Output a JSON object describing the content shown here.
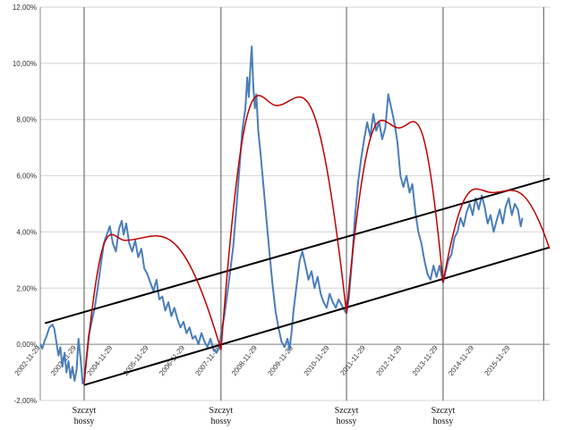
{
  "chart_data": {
    "type": "line",
    "title": "",
    "xlabel": "",
    "ylabel": "",
    "ylim": [
      -2,
      12
    ],
    "xlim": [
      "2002-11-29",
      "2017-01-01"
    ],
    "y_ticks": [
      "-2,00%",
      "0,00%",
      "2,00%",
      "4,00%",
      "6,00%",
      "8,00%",
      "10,00%",
      "12,00%"
    ],
    "x_ticks": [
      {
        "date": "2002-11-29",
        "label": "2002-11-29"
      },
      {
        "date": "2003-11-29",
        "label": "2003-11-29"
      },
      {
        "date": "2004-11-29",
        "label": "2004-11-29"
      },
      {
        "date": "2005-11-29",
        "label": "2005-11-29"
      },
      {
        "date": "2006-11-29",
        "label": "2006-11-29"
      },
      {
        "date": "2007-11-29",
        "label": "2007-11-29"
      },
      {
        "date": "2008-11-29",
        "label": "2008-11-29"
      },
      {
        "date": "2009-11-29",
        "label": "2009-11-29"
      },
      {
        "date": "2010-11-29",
        "label": "2010-11-29"
      },
      {
        "date": "2011-11-29",
        "label": "2011-11-29"
      },
      {
        "date": "2012-11-29",
        "label": "2012-11-29"
      },
      {
        "date": "2013-11-29",
        "label": "2013-11-29"
      },
      {
        "date": "2014-11-29",
        "label": "2014-11-29"
      },
      {
        "date": "2015-11-29",
        "label": "2015-11-29"
      }
    ],
    "vertical_lines": [
      "2004-02-15",
      "2007-11-29",
      "2011-05-20",
      "2014-01-20",
      "2016-11-01"
    ],
    "peak_labels": [
      {
        "date": "2004-02-15",
        "line1": "Szczyt",
        "line2": "hossy"
      },
      {
        "date": "2007-11-29",
        "line1": "Szczyt",
        "line2": "hossy"
      },
      {
        "date": "2011-05-20",
        "line1": "Szczyt",
        "line2": "hossy"
      },
      {
        "date": "2014-01-20",
        "line1": "Szczyt",
        "line2": "hossy"
      }
    ],
    "series": [
      {
        "color": "#4a7ebb",
        "points": [
          [
            "2002-11-29",
            0.0
          ],
          [
            "2002-12-20",
            -0.15
          ],
          [
            "2003-01-10",
            0.1
          ],
          [
            "2003-02-01",
            0.3
          ],
          [
            "2003-03-01",
            0.6
          ],
          [
            "2003-04-01",
            0.7
          ],
          [
            "2003-04-20",
            0.55
          ],
          [
            "2003-05-10",
            0.1
          ],
          [
            "2003-06-01",
            -0.4
          ],
          [
            "2003-06-20",
            -0.1
          ],
          [
            "2003-07-10",
            -0.8
          ],
          [
            "2003-08-01",
            -0.3
          ],
          [
            "2003-08-20",
            -1.0
          ],
          [
            "2003-09-10",
            -0.6
          ],
          [
            "2003-10-01",
            -1.2
          ],
          [
            "2003-10-20",
            -0.8
          ],
          [
            "2003-11-10",
            -1.3
          ],
          [
            "2003-12-01",
            -0.9
          ],
          [
            "2003-12-20",
            0.2
          ],
          [
            "2004-01-10",
            -0.5
          ],
          [
            "2004-02-01",
            -1.4
          ],
          [
            "2004-02-15",
            -1.3
          ],
          [
            "2004-03-10",
            -0.5
          ],
          [
            "2004-04-01",
            0.3
          ],
          [
            "2004-05-01",
            0.8
          ],
          [
            "2004-06-01",
            1.3
          ],
          [
            "2004-07-01",
            2.0
          ],
          [
            "2004-08-01",
            2.8
          ],
          [
            "2004-09-01",
            3.6
          ],
          [
            "2004-10-01",
            3.9
          ],
          [
            "2004-11-01",
            4.2
          ],
          [
            "2004-12-01",
            3.6
          ],
          [
            "2005-01-01",
            3.3
          ],
          [
            "2005-02-01",
            4.1
          ],
          [
            "2005-03-01",
            4.4
          ],
          [
            "2005-03-20",
            3.9
          ],
          [
            "2005-04-15",
            4.3
          ],
          [
            "2005-05-15",
            3.6
          ],
          [
            "2005-06-15",
            3.3
          ],
          [
            "2005-07-15",
            3.7
          ],
          [
            "2005-08-15",
            3.1
          ],
          [
            "2005-09-15",
            3.4
          ],
          [
            "2005-10-15",
            2.7
          ],
          [
            "2005-11-15",
            2.5
          ],
          [
            "2005-12-15",
            2.2
          ],
          [
            "2006-01-15",
            1.9
          ],
          [
            "2006-02-15",
            2.3
          ],
          [
            "2006-03-15",
            1.6
          ],
          [
            "2006-04-15",
            1.7
          ],
          [
            "2006-05-15",
            1.2
          ],
          [
            "2006-06-15",
            1.5
          ],
          [
            "2006-07-15",
            1.0
          ],
          [
            "2006-08-15",
            1.3
          ],
          [
            "2006-09-15",
            0.9
          ],
          [
            "2006-10-15",
            0.6
          ],
          [
            "2006-11-15",
            0.8
          ],
          [
            "2006-12-15",
            0.4
          ],
          [
            "2007-01-15",
            0.6
          ],
          [
            "2007-02-15",
            0.2
          ],
          [
            "2007-03-15",
            0.3
          ],
          [
            "2007-04-15",
            0.0
          ],
          [
            "2007-05-15",
            0.4
          ],
          [
            "2007-06-15",
            0.1
          ],
          [
            "2007-07-15",
            -0.1
          ],
          [
            "2007-08-15",
            0.2
          ],
          [
            "2007-09-15",
            -0.2
          ],
          [
            "2007-10-15",
            -0.3
          ],
          [
            "2007-11-15",
            0.0
          ],
          [
            "2007-12-01",
            0.4
          ],
          [
            "2008-01-01",
            1.0
          ],
          [
            "2008-02-01",
            1.8
          ],
          [
            "2008-03-01",
            2.6
          ],
          [
            "2008-04-01",
            3.5
          ],
          [
            "2008-05-01",
            4.8
          ],
          [
            "2008-06-01",
            6.2
          ],
          [
            "2008-07-01",
            7.6
          ],
          [
            "2008-08-01",
            8.4
          ],
          [
            "2008-08-20",
            9.5
          ],
          [
            "2008-09-05",
            8.8
          ],
          [
            "2008-09-20",
            9.8
          ],
          [
            "2008-10-05",
            10.6
          ],
          [
            "2008-10-20",
            9.2
          ],
          [
            "2008-11-05",
            8.4
          ],
          [
            "2008-11-20",
            8.9
          ],
          [
            "2008-12-10",
            7.6
          ],
          [
            "2009-01-01",
            6.8
          ],
          [
            "2009-02-01",
            5.6
          ],
          [
            "2009-03-01",
            4.5
          ],
          [
            "2009-04-01",
            3.3
          ],
          [
            "2009-05-01",
            2.2
          ],
          [
            "2009-06-01",
            1.2
          ],
          [
            "2009-07-01",
            0.6
          ],
          [
            "2009-08-01",
            0.1
          ],
          [
            "2009-09-01",
            -0.1
          ],
          [
            "2009-10-01",
            0.2
          ],
          [
            "2009-10-20",
            -0.2
          ],
          [
            "2009-11-10",
            0.4
          ],
          [
            "2009-12-01",
            1.2
          ],
          [
            "2010-01-01",
            2.1
          ],
          [
            "2010-02-01",
            3.0
          ],
          [
            "2010-03-01",
            3.3
          ],
          [
            "2010-04-01",
            2.8
          ],
          [
            "2010-05-01",
            2.3
          ],
          [
            "2010-06-01",
            2.6
          ],
          [
            "2010-07-01",
            2.0
          ],
          [
            "2010-08-01",
            2.4
          ],
          [
            "2010-09-01",
            1.8
          ],
          [
            "2010-10-01",
            1.5
          ],
          [
            "2010-11-01",
            1.3
          ],
          [
            "2010-12-01",
            1.8
          ],
          [
            "2011-01-01",
            1.5
          ],
          [
            "2011-02-01",
            1.3
          ],
          [
            "2011-03-01",
            1.6
          ],
          [
            "2011-04-01",
            1.4
          ],
          [
            "2011-05-01",
            1.2
          ],
          [
            "2011-05-20",
            1.1
          ],
          [
            "2011-06-15",
            1.7
          ],
          [
            "2011-07-15",
            3.0
          ],
          [
            "2011-08-15",
            4.6
          ],
          [
            "2011-09-15",
            5.8
          ],
          [
            "2011-10-15",
            6.6
          ],
          [
            "2011-11-15",
            7.3
          ],
          [
            "2011-12-15",
            7.9
          ],
          [
            "2012-01-15",
            7.4
          ],
          [
            "2012-02-15",
            8.2
          ],
          [
            "2012-03-15",
            7.6
          ],
          [
            "2012-04-15",
            7.9
          ],
          [
            "2012-05-15",
            7.3
          ],
          [
            "2012-06-15",
            7.7
          ],
          [
            "2012-07-15",
            8.9
          ],
          [
            "2012-08-15",
            8.4
          ],
          [
            "2012-09-15",
            7.9
          ],
          [
            "2012-10-15",
            7.2
          ],
          [
            "2012-11-15",
            6.0
          ],
          [
            "2012-12-15",
            5.6
          ],
          [
            "2013-01-15",
            6.0
          ],
          [
            "2013-02-15",
            5.4
          ],
          [
            "2013-03-15",
            5.7
          ],
          [
            "2013-04-15",
            4.7
          ],
          [
            "2013-05-15",
            4.0
          ],
          [
            "2013-06-15",
            3.6
          ],
          [
            "2013-07-15",
            3.0
          ],
          [
            "2013-08-15",
            2.5
          ],
          [
            "2013-09-15",
            2.3
          ],
          [
            "2013-10-15",
            2.8
          ],
          [
            "2013-11-15",
            2.4
          ],
          [
            "2013-12-15",
            2.8
          ],
          [
            "2014-01-20",
            2.2
          ],
          [
            "2014-02-15",
            2.6
          ],
          [
            "2014-03-15",
            3.0
          ],
          [
            "2014-04-15",
            3.2
          ],
          [
            "2014-05-15",
            3.8
          ],
          [
            "2014-06-15",
            4.0
          ],
          [
            "2014-07-15",
            4.5
          ],
          [
            "2014-08-15",
            4.2
          ],
          [
            "2014-09-15",
            4.7
          ],
          [
            "2014-10-15",
            5.0
          ],
          [
            "2014-11-15",
            4.6
          ],
          [
            "2014-12-15",
            5.2
          ],
          [
            "2015-01-15",
            4.8
          ],
          [
            "2015-02-15",
            5.3
          ],
          [
            "2015-03-15",
            4.9
          ],
          [
            "2015-04-15",
            4.3
          ],
          [
            "2015-05-15",
            4.6
          ],
          [
            "2015-06-15",
            4.0
          ],
          [
            "2015-07-15",
            4.4
          ],
          [
            "2015-08-15",
            4.8
          ],
          [
            "2015-09-15",
            4.3
          ],
          [
            "2015-10-15",
            4.9
          ],
          [
            "2015-11-15",
            5.2
          ],
          [
            "2015-12-15",
            4.6
          ],
          [
            "2016-01-15",
            5.0
          ],
          [
            "2016-02-15",
            4.8
          ],
          [
            "2016-03-15",
            4.2
          ],
          [
            "2016-04-01",
            4.5
          ]
        ]
      }
    ],
    "arcs": [
      {
        "color": "#c00000",
        "start": [
          "2004-02-15",
          -1.4
        ],
        "peak": [
          "2005-04-01",
          3.7
        ],
        "end": [
          "2007-11-29",
          -0.2
        ]
      },
      {
        "color": "#c00000",
        "start": [
          "2007-11-29",
          -0.2
        ],
        "peak": [
          "2009-06-15",
          8.5
        ],
        "end": [
          "2011-05-20",
          1.1
        ]
      },
      {
        "color": "#c00000",
        "start": [
          "2011-05-20",
          1.1
        ],
        "peak": [
          "2012-11-01",
          7.7
        ],
        "end": [
          "2014-01-20",
          2.2
        ]
      },
      {
        "color": "#c00000",
        "start": [
          "2014-01-20",
          2.2
        ],
        "peak": [
          "2015-06-01",
          5.4
        ],
        "end": [
          "2016-12-31",
          3.4
        ]
      }
    ],
    "trend_lines": [
      {
        "color": "#000000",
        "from": [
          "2003-01-15",
          0.75
        ],
        "to": [
          "2017-01-01",
          5.9
        ]
      },
      {
        "color": "#000000",
        "from": [
          "2004-02-15",
          -1.45
        ],
        "to": [
          "2017-01-01",
          3.45
        ]
      }
    ]
  }
}
